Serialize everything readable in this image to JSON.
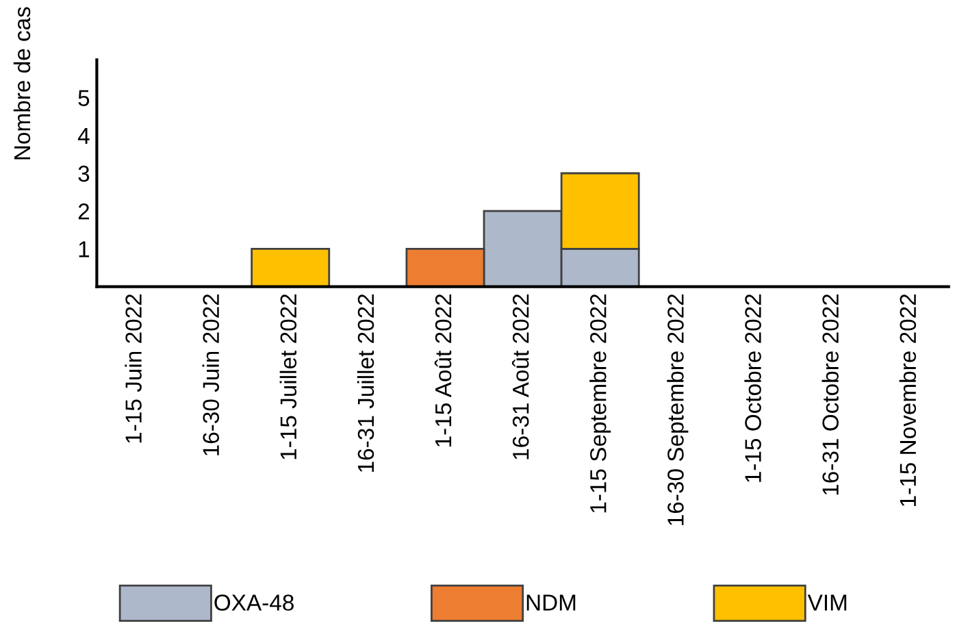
{
  "chart_data": {
    "type": "bar",
    "stacked": true,
    "ylabel": "Nombre de cas",
    "categories": [
      "1-15 Juin 2022",
      "16-30 Juin 2022",
      "1-15 Juillet 2022",
      "16-31 Juillet 2022",
      "1-15 Août 2022",
      "16-31 Août 2022",
      "1-15 Septembre 2022",
      "16-30 Septembre 2022",
      "1-15 Octobre 2022",
      "16-31 Octobre 2022",
      "1-15 Novembre 2022"
    ],
    "series": [
      {
        "name": "OXA-48",
        "color": "#adb9ca",
        "values": [
          0,
          0,
          0,
          0,
          0,
          2,
          1,
          0,
          0,
          0,
          0
        ]
      },
      {
        "name": "NDM",
        "color": "#ed7d31",
        "values": [
          0,
          0,
          0,
          0,
          1,
          0,
          0,
          0,
          0,
          0,
          0
        ]
      },
      {
        "name": "VIM",
        "color": "#ffc000",
        "values": [
          0,
          0,
          1,
          0,
          0,
          0,
          2,
          0,
          0,
          0,
          0
        ]
      }
    ],
    "ylim": [
      0,
      6
    ],
    "yticks": [
      1,
      2,
      3,
      4,
      5
    ],
    "grid": false,
    "legend": "bottom"
  }
}
